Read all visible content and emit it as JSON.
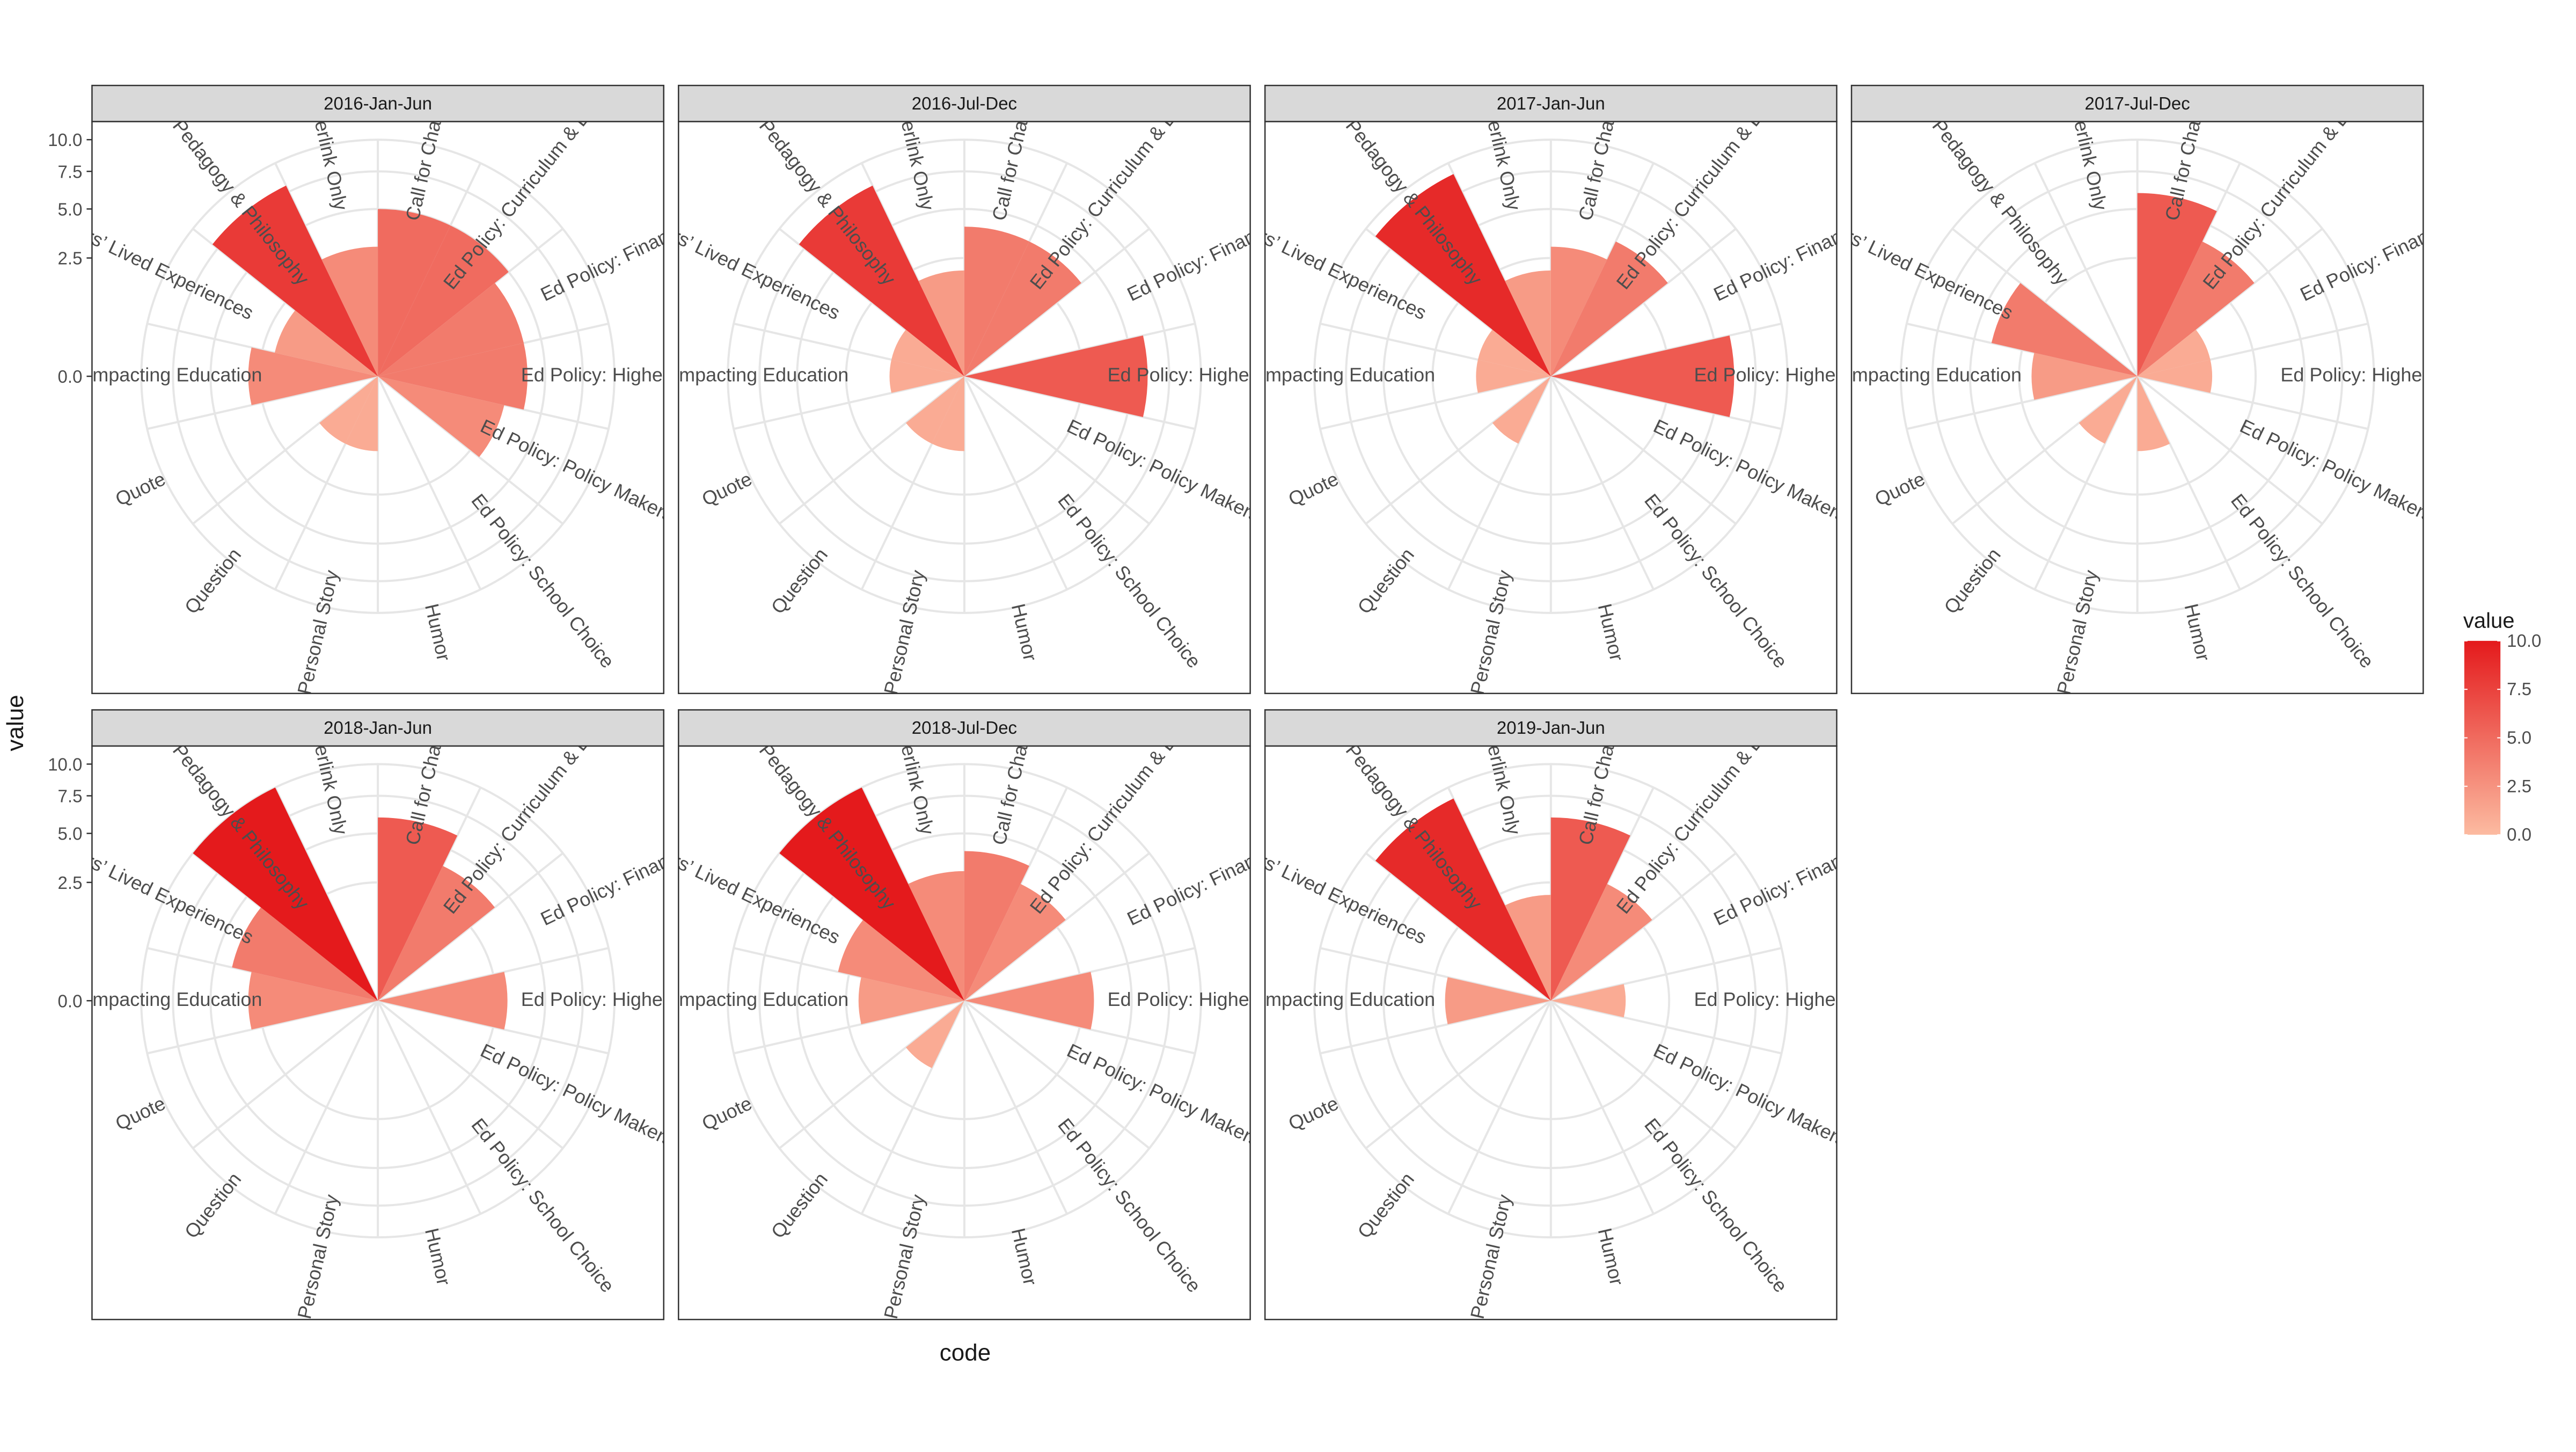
{
  "chart_data": {
    "type": "polar-bar",
    "xlabel": "code",
    "ylabel": "value",
    "ylim": [
      0,
      10
    ],
    "y_ticks": [
      "0.0",
      "2.5",
      "5.0",
      "7.5",
      "10.0"
    ],
    "grid": true,
    "legend": {
      "title": "value",
      "placement": "right",
      "labels": [
        "10.0",
        "7.5",
        "5.0",
        "2.5",
        "0.0"
      ],
      "color_low": "#fcbba1",
      "color_high": "#e41a1c"
    },
    "categories": [
      "Call for Change Critique",
      "Ed Policy: Curriculum & Evaluation",
      "Ed Policy: Finance",
      "Ed Policy: Higher Education",
      "Ed Policy: Policy Makers & Politics",
      "Ed Policy: School Choice",
      "Humor",
      "Personal Story",
      "Question",
      "Quote",
      "Social Issues Impacting Education",
      "Teachers’ Lived Experiences",
      "Teaching Pedagogy & Philosophy",
      "Title & Hyperlink Only"
    ],
    "panels": [
      {
        "title": "2016-Jan-Jun",
        "values": [
          5,
          5,
          4,
          4,
          3,
          0,
          0,
          1,
          1,
          0,
          3,
          2,
          8,
          3
        ]
      },
      {
        "title": "2016-Jul-Dec",
        "values": [
          4,
          4,
          0,
          6,
          0,
          0,
          0,
          1,
          1,
          0,
          1,
          1,
          8,
          2
        ]
      },
      {
        "title": "2017-Jan-Jun",
        "values": [
          3,
          4,
          0,
          6,
          0,
          0,
          0,
          0,
          1,
          0,
          1,
          1,
          9,
          2
        ]
      },
      {
        "title": "2017-Jul-Dec",
        "values": [
          6,
          4,
          1,
          1,
          0,
          0,
          1,
          0,
          1,
          0,
          2,
          4,
          0,
          0
        ]
      },
      {
        "title": "2018-Jan-Jun",
        "values": [
          6,
          4,
          0,
          3,
          0,
          0,
          0,
          0,
          0,
          0,
          3,
          4,
          10,
          0
        ]
      },
      {
        "title": "2018-Jul-Dec",
        "values": [
          4,
          3,
          0,
          3,
          0,
          0,
          0,
          0,
          1,
          0,
          2,
          3,
          10,
          3
        ]
      },
      {
        "title": "2019-Jan-Jun",
        "values": [
          6,
          3,
          0,
          1,
          0,
          0,
          0,
          0,
          0,
          0,
          2,
          0,
          9,
          2
        ]
      }
    ]
  }
}
